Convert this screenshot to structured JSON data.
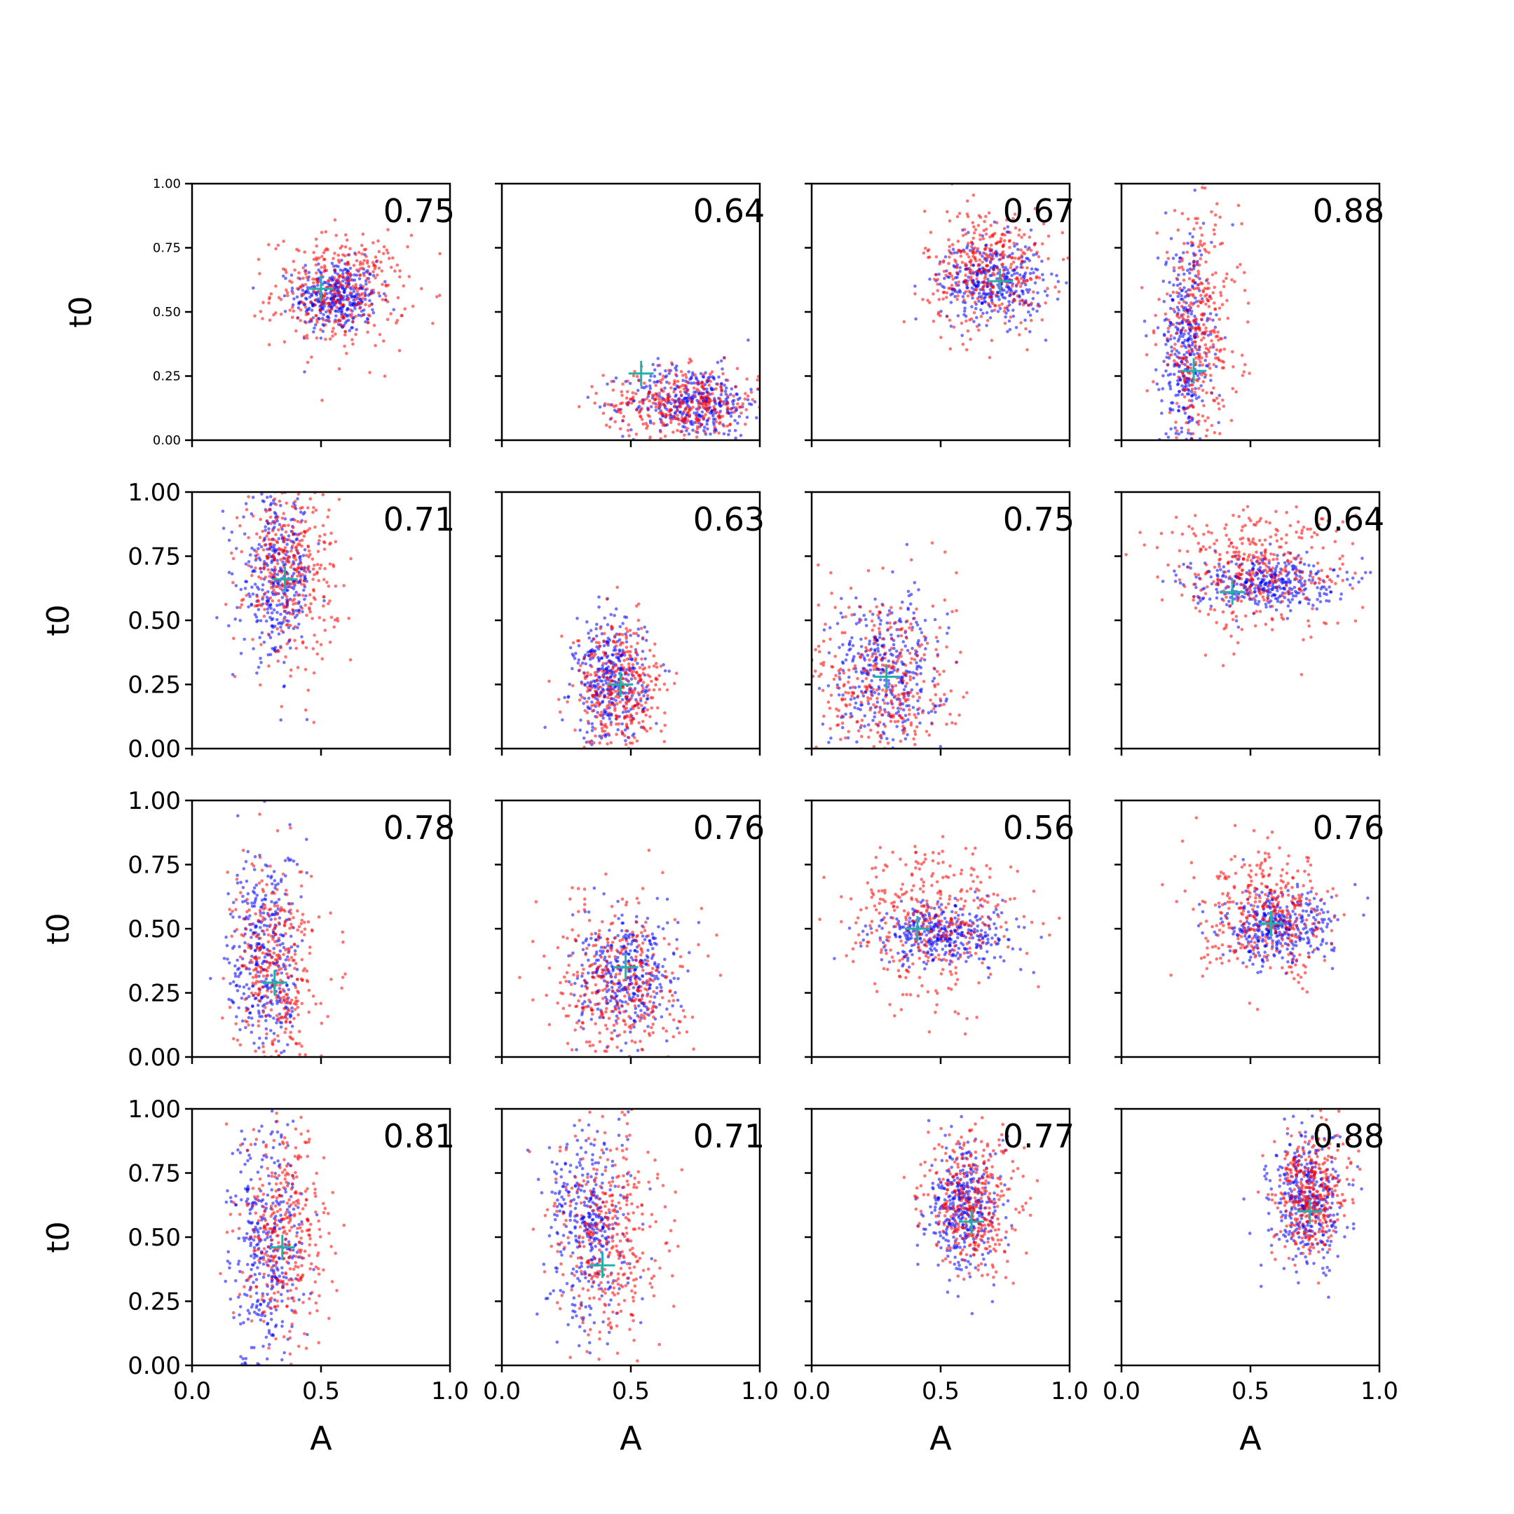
{
  "chart_data": {
    "type": "scatter",
    "grid": false,
    "layout": "4x4 panels, shared axes",
    "xlabel": "A",
    "ylabel": "t0",
    "xlim": [
      0,
      1
    ],
    "ylim": [
      0,
      1
    ],
    "x_ticks": [
      "0.0",
      "0.5",
      "1.0"
    ],
    "y_ticks": [
      "0.00",
      "0.25",
      "0.50",
      "0.75",
      "1.00"
    ],
    "colors": {
      "series_1": "#0000ff",
      "series_2": "#ff0000",
      "marker": "#20b2aa"
    },
    "panels": [
      {
        "score": "0.75",
        "marker": [
          0.5,
          0.59
        ],
        "blue": {
          "c": [
            0.56,
            0.56
          ],
          "s": [
            0.08,
            0.07
          ]
        },
        "red": {
          "c": [
            0.57,
            0.58
          ],
          "s": [
            0.13,
            0.11
          ]
        }
      },
      {
        "score": "0.64",
        "marker": [
          0.54,
          0.26
        ],
        "blue": {
          "c": [
            0.74,
            0.15
          ],
          "s": [
            0.13,
            0.07
          ]
        },
        "red": {
          "c": [
            0.7,
            0.14
          ],
          "s": [
            0.15,
            0.07
          ]
        }
      },
      {
        "score": "0.67",
        "marker": [
          0.73,
          0.62
        ],
        "blue": {
          "c": [
            0.7,
            0.62
          ],
          "s": [
            0.1,
            0.08
          ]
        },
        "red": {
          "c": [
            0.68,
            0.67
          ],
          "s": [
            0.12,
            0.12
          ]
        }
      },
      {
        "score": "0.88",
        "marker": [
          0.28,
          0.27
        ],
        "blue": {
          "c": [
            0.25,
            0.36
          ],
          "s": [
            0.05,
            0.22
          ]
        },
        "red": {
          "c": [
            0.3,
            0.42
          ],
          "s": [
            0.08,
            0.22
          ]
        }
      },
      {
        "score": "0.71",
        "marker": [
          0.36,
          0.66
        ],
        "blue": {
          "c": [
            0.33,
            0.66
          ],
          "s": [
            0.07,
            0.16
          ]
        },
        "red": {
          "c": [
            0.38,
            0.7
          ],
          "s": [
            0.09,
            0.17
          ]
        }
      },
      {
        "score": "0.63",
        "marker": [
          0.46,
          0.25
        ],
        "blue": {
          "c": [
            0.42,
            0.26
          ],
          "s": [
            0.07,
            0.12
          ]
        },
        "red": {
          "c": [
            0.46,
            0.23
          ],
          "s": [
            0.09,
            0.13
          ]
        }
      },
      {
        "score": "0.75",
        "marker": [
          0.29,
          0.28
        ],
        "blue": {
          "c": [
            0.29,
            0.3
          ],
          "s": [
            0.11,
            0.15
          ]
        },
        "red": {
          "c": [
            0.28,
            0.25
          ],
          "s": [
            0.14,
            0.2
          ]
        }
      },
      {
        "score": "0.64",
        "marker": [
          0.43,
          0.61
        ],
        "blue": {
          "c": [
            0.55,
            0.65
          ],
          "s": [
            0.14,
            0.05
          ]
        },
        "red": {
          "c": [
            0.52,
            0.7
          ],
          "s": [
            0.18,
            0.12
          ]
        }
      },
      {
        "score": "0.78",
        "marker": [
          0.32,
          0.29
        ],
        "blue": {
          "c": [
            0.28,
            0.38
          ],
          "s": [
            0.07,
            0.22
          ]
        },
        "red": {
          "c": [
            0.33,
            0.34
          ],
          "s": [
            0.08,
            0.21
          ]
        }
      },
      {
        "score": "0.76",
        "marker": [
          0.48,
          0.35
        ],
        "blue": {
          "c": [
            0.48,
            0.31
          ],
          "s": [
            0.1,
            0.11
          ]
        },
        "red": {
          "c": [
            0.46,
            0.3
          ],
          "s": [
            0.12,
            0.16
          ]
        }
      },
      {
        "score": "0.56",
        "marker": [
          0.41,
          0.5
        ],
        "blue": {
          "c": [
            0.52,
            0.48
          ],
          "s": [
            0.14,
            0.06
          ]
        },
        "red": {
          "c": [
            0.47,
            0.53
          ],
          "s": [
            0.16,
            0.15
          ]
        }
      },
      {
        "score": "0.76",
        "marker": [
          0.58,
          0.52
        ],
        "blue": {
          "c": [
            0.6,
            0.5
          ],
          "s": [
            0.11,
            0.07
          ]
        },
        "red": {
          "c": [
            0.57,
            0.55
          ],
          "s": [
            0.13,
            0.12
          ]
        }
      },
      {
        "score": "0.81",
        "marker": [
          0.35,
          0.46
        ],
        "blue": {
          "c": [
            0.29,
            0.48
          ],
          "s": [
            0.07,
            0.24
          ]
        },
        "red": {
          "c": [
            0.36,
            0.5
          ],
          "s": [
            0.08,
            0.22
          ]
        }
      },
      {
        "score": "0.71",
        "marker": [
          0.39,
          0.39
        ],
        "blue": {
          "c": [
            0.34,
            0.55
          ],
          "s": [
            0.08,
            0.2
          ]
        },
        "red": {
          "c": [
            0.42,
            0.52
          ],
          "s": [
            0.1,
            0.22
          ]
        }
      },
      {
        "score": "0.77",
        "marker": [
          0.62,
          0.56
        ],
        "blue": {
          "c": [
            0.59,
            0.61
          ],
          "s": [
            0.07,
            0.12
          ]
        },
        "red": {
          "c": [
            0.62,
            0.63
          ],
          "s": [
            0.09,
            0.14
          ]
        }
      },
      {
        "score": "0.88",
        "marker": [
          0.73,
          0.6
        ],
        "blue": {
          "c": [
            0.72,
            0.64
          ],
          "s": [
            0.07,
            0.12
          ]
        },
        "red": {
          "c": [
            0.73,
            0.67
          ],
          "s": [
            0.07,
            0.12
          ]
        }
      }
    ]
  }
}
